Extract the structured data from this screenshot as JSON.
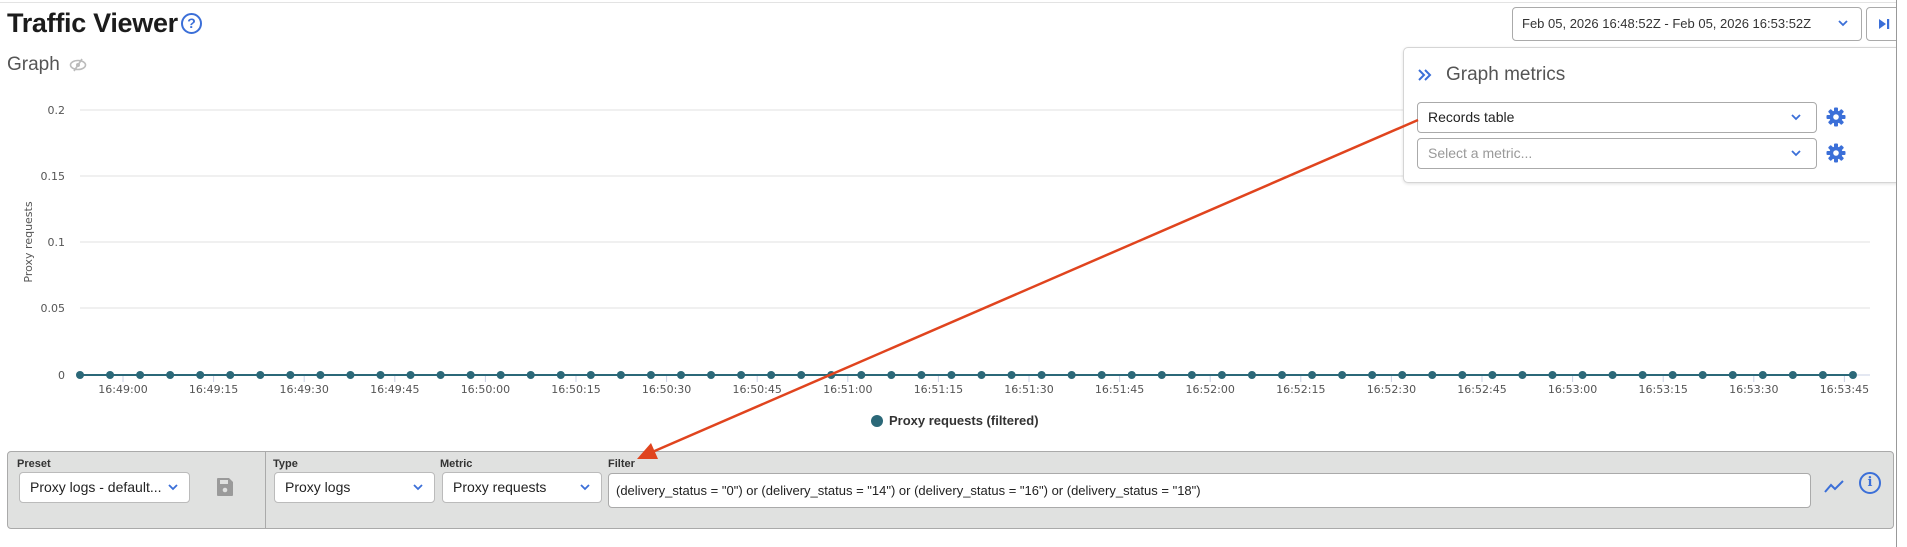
{
  "header": {
    "title": "Traffic Viewer",
    "help_icon": "question-circle-icon",
    "graph_label": "Graph",
    "graph_visibility_icon": "eye-slash-icon"
  },
  "time_range": {
    "value": "Feb 05, 2026 16:48:52Z - Feb 05, 2026 16:53:52Z",
    "end_button_icon": "skip-to-end-icon"
  },
  "metrics_panel": {
    "title": "Graph metrics",
    "collapse_icon": "double-chevron-right-icon",
    "metric_selects": [
      {
        "value": "Records table",
        "placeholder": ""
      },
      {
        "value": "",
        "placeholder": "Select a metric..."
      }
    ],
    "settings_icon": "gear-icon"
  },
  "chart_data": {
    "type": "line",
    "title": "",
    "xlabel": "",
    "ylabel": "Proxy requests",
    "ylim": [
      0,
      0.2
    ],
    "yticks": [
      "0",
      "0.05",
      "0.1",
      "0.15",
      "0.2"
    ],
    "xticks": [
      "16:49:00",
      "16:49:15",
      "16:49:30",
      "16:49:45",
      "16:50:00",
      "16:50:15",
      "16:50:30",
      "16:50:45",
      "16:51:00",
      "16:51:15",
      "16:51:30",
      "16:51:45",
      "16:52:00",
      "16:52:15",
      "16:52:30",
      "16:52:45",
      "16:53:00",
      "16:53:15",
      "16:53:30",
      "16:53:45"
    ],
    "grid": true,
    "legend_position": "bottom",
    "series": [
      {
        "name": "Proxy requests (filtered)",
        "color": "#2b6878",
        "point_interval_seconds": 5,
        "values": [
          0,
          0,
          0,
          0,
          0,
          0,
          0,
          0,
          0,
          0,
          0,
          0,
          0,
          0,
          0,
          0,
          0,
          0,
          0,
          0,
          0,
          0,
          0,
          0,
          0,
          0,
          0,
          0,
          0,
          0,
          0,
          0,
          0,
          0,
          0,
          0,
          0,
          0,
          0,
          0,
          0,
          0,
          0,
          0,
          0,
          0,
          0,
          0,
          0,
          0,
          0,
          0,
          0,
          0,
          0,
          0,
          0,
          0,
          0,
          0
        ]
      }
    ]
  },
  "legend": {
    "label": "Proxy requests (filtered)"
  },
  "query_bar": {
    "preset_label": "Preset",
    "preset_value": "Proxy logs - default...",
    "save_icon": "floppy-disk-icon",
    "type_label": "Type",
    "type_value": "Proxy logs",
    "metric_label": "Metric",
    "metric_value": "Proxy requests",
    "filter_label": "Filter",
    "filter_value": "(delivery_status = \"0\") or (delivery_status = \"14\") or (delivery_status = \"16\") or (delivery_status = \"18\")",
    "graph_icon": "line-chart-icon",
    "info_icon": "info-circle-icon"
  },
  "colors": {
    "accent": "#3b6fd8",
    "series": "#2b6878",
    "annotation_arrow": "#e0441e",
    "query_bar_bg": "#e0e1e0"
  }
}
